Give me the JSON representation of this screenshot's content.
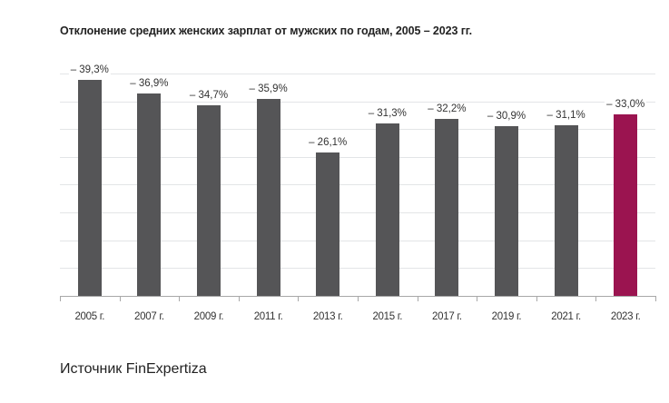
{
  "chart_data": {
    "type": "bar",
    "title": "Отклонение средних женских зарплат от мужских по годам, 2005 – 2023 гг.",
    "xlabel": "",
    "ylabel": "",
    "categories": [
      "2005 г.",
      "2007 г.",
      "2009 г.",
      "2011 г.",
      "2013 г.",
      "2015 г.",
      "2017 г.",
      "2019 г.",
      "2021 г.",
      "2023 г."
    ],
    "values": [
      -39.3,
      -36.9,
      -34.7,
      -35.9,
      -26.1,
      -31.3,
      -32.2,
      -30.9,
      -31.1,
      -33.0
    ],
    "value_labels": [
      "– 39,3%",
      "– 36,9%",
      "– 34,7%",
      "– 35,9%",
      "– 26,1%",
      "– 31,3%",
      "– 32,2%",
      "– 30,9%",
      "– 31,1%",
      "– 33,0%"
    ],
    "highlight_index": 9,
    "colors": {
      "bar": "#555557",
      "highlight": "#9b1450",
      "grid": "#e3e5e7"
    },
    "grid": true,
    "gridlines": 8,
    "legend": null
  },
  "footer": {
    "source": "Источник FinExpertiza"
  }
}
